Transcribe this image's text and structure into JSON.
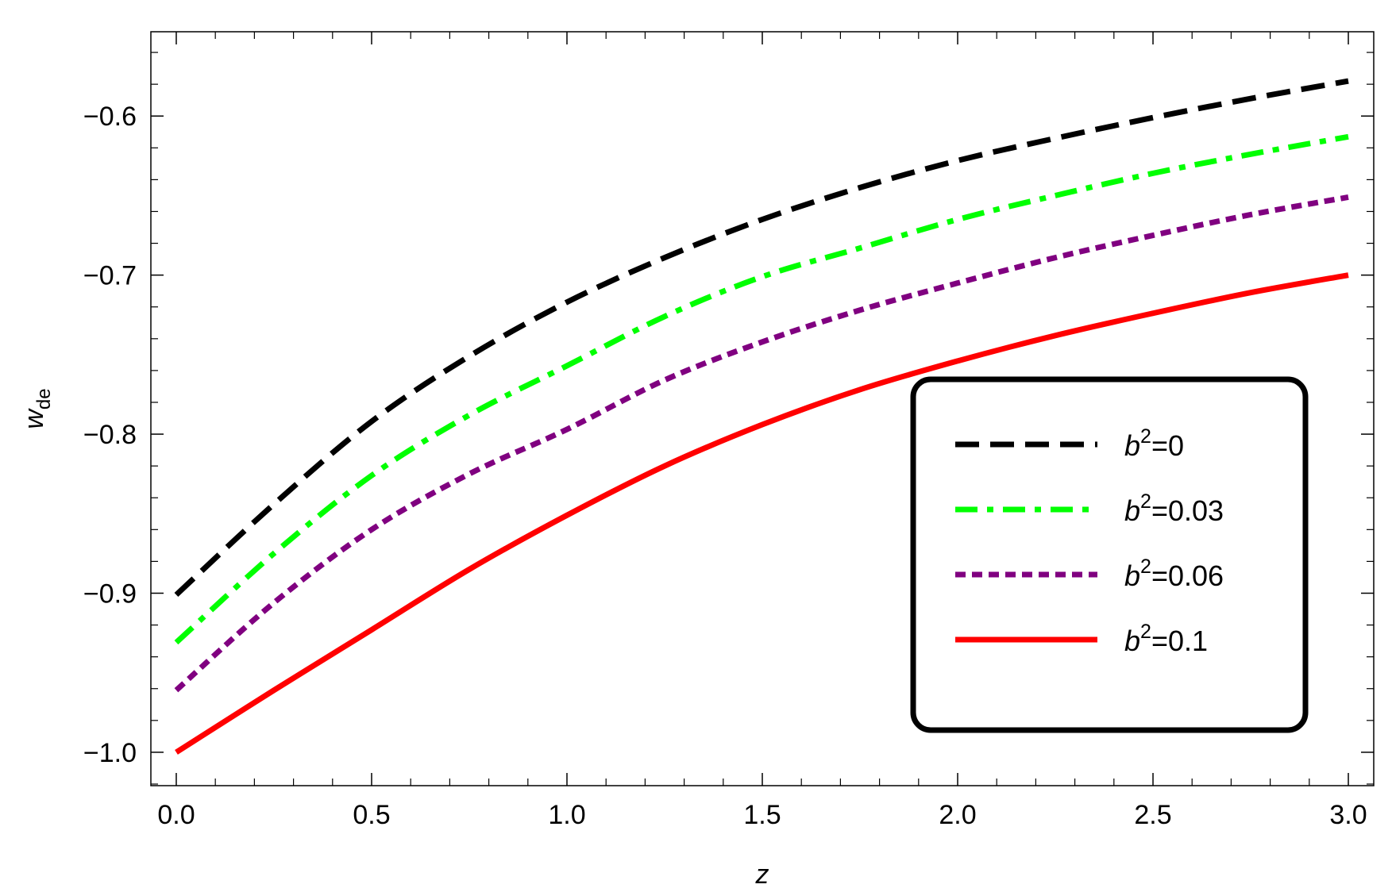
{
  "chart_data": {
    "type": "line",
    "title": "",
    "xlabel": "z",
    "ylabel": "w",
    "ylabel_subscript": "de",
    "xlim": [
      -0.065,
      3.065
    ],
    "ylim": [
      -1.021,
      -0.547
    ],
    "x_ticks": [
      0.0,
      0.5,
      1.0,
      1.5,
      2.0,
      2.5,
      3.0
    ],
    "x_tick_labels": [
      "0.0",
      "0.5",
      "1.0",
      "1.5",
      "2.0",
      "2.5",
      "3.0"
    ],
    "y_ticks": [
      -1.0,
      -0.9,
      -0.8,
      -0.7,
      -0.6
    ],
    "y_tick_labels": [
      "−1.0",
      "−0.9",
      "−0.8",
      "−0.7",
      "−0.6"
    ],
    "grid": false,
    "legend_position": "lower-right",
    "x": [
      0.0,
      0.25,
      0.5,
      0.75,
      1.0,
      1.25,
      1.5,
      1.75,
      2.0,
      2.25,
      2.5,
      2.75,
      3.0
    ],
    "series": [
      {
        "name": "b²=0",
        "legend_base": "b",
        "legend_sup": "2",
        "legend_value": "=0",
        "color": "#000000",
        "style": "dashed",
        "values": [
          -0.901,
          -0.844,
          -0.792,
          -0.751,
          -0.717,
          -0.689,
          -0.665,
          -0.645,
          -0.628,
          -0.614,
          -0.601,
          -0.589,
          -0.578
        ]
      },
      {
        "name": "b²=0.03",
        "legend_base": "b",
        "legend_sup": "2",
        "legend_value": "=0.03",
        "color": "#00ff00",
        "style": "dashdot",
        "values": [
          -0.931,
          -0.875,
          -0.826,
          -0.788,
          -0.757,
          -0.726,
          -0.701,
          -0.683,
          -0.665,
          -0.65,
          -0.636,
          -0.624,
          -0.613
        ]
      },
      {
        "name": "b²=0.06",
        "legend_base": "b",
        "legend_sup": "2",
        "legend_value": "=0.06",
        "color": "#800080",
        "style": "dotted",
        "values": [
          -0.961,
          -0.906,
          -0.86,
          -0.825,
          -0.797,
          -0.766,
          -0.742,
          -0.722,
          -0.705,
          -0.689,
          -0.675,
          -0.662,
          -0.651
        ]
      },
      {
        "name": "b²=0.1",
        "legend_base": "b",
        "legend_sup": "2",
        "legend_value": "=0.1",
        "color": "#ff0000",
        "style": "solid",
        "values": [
          -1.0,
          -0.961,
          -0.923,
          -0.885,
          -0.851,
          -0.82,
          -0.794,
          -0.772,
          -0.754,
          -0.738,
          -0.724,
          -0.711,
          -0.7
        ]
      }
    ]
  }
}
